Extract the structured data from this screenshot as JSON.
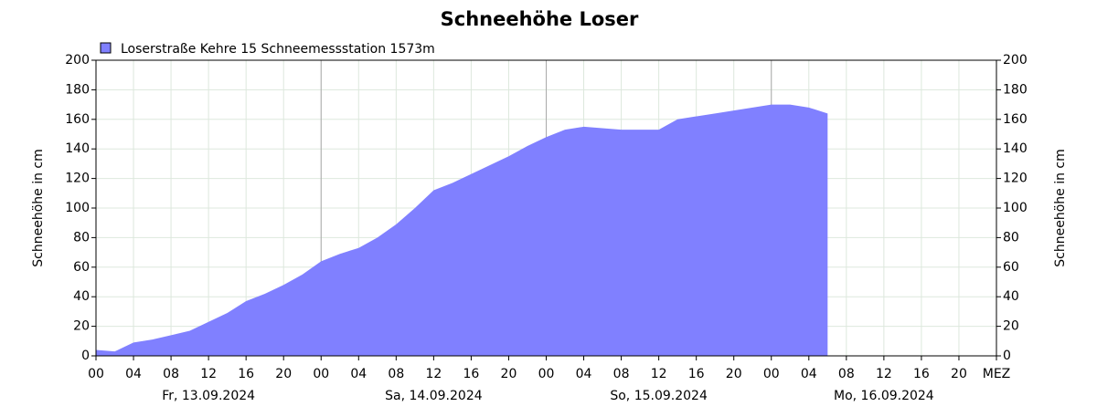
{
  "chart_data": {
    "type": "area",
    "title": "Schneehöhe    Loser",
    "ylabel": "Schneehöhe in cm",
    "y2label": "Schneehöhe in cm",
    "series": [
      {
        "name": "Loserstraße Kehre 15 Schneemessstation   1573m",
        "color": "#8080ff",
        "x": [
          0,
          2,
          4,
          6,
          8,
          10,
          12,
          14,
          16,
          18,
          20,
          22,
          24,
          26,
          28,
          30,
          32,
          34,
          36,
          38,
          40,
          42,
          44,
          46,
          48,
          50,
          52,
          54,
          56,
          58,
          60,
          62,
          64,
          66,
          68,
          70,
          72,
          74,
          76,
          78
        ],
        "values": [
          4,
          3,
          9,
          11,
          14,
          17,
          23,
          29,
          37,
          42,
          48,
          55,
          64,
          69,
          73,
          80,
          89,
          100,
          112,
          117,
          123,
          129,
          135,
          142,
          148,
          153,
          155,
          154,
          153,
          153,
          153,
          160,
          162,
          164,
          166,
          168,
          170,
          170,
          168,
          164
        ]
      }
    ],
    "xlim": [
      0,
      96
    ],
    "xticks": [
      {
        "value": 0,
        "label": "00"
      },
      {
        "value": 4,
        "label": "04"
      },
      {
        "value": 8,
        "label": "08"
      },
      12,
      16,
      20,
      {
        "value": 24,
        "label": "00"
      },
      {
        "value": 28,
        "label": "04"
      },
      {
        "value": 32,
        "label": "08"
      },
      {
        "value": 36,
        "label": "12"
      },
      {
        "value": 40,
        "label": "16"
      },
      {
        "value": 44,
        "label": "20"
      },
      {
        "value": 48,
        "label": "00"
      },
      {
        "value": 52,
        "label": "04"
      },
      {
        "value": 56,
        "label": "08"
      },
      {
        "value": 60,
        "label": "12"
      },
      {
        "value": 64,
        "label": "16"
      },
      {
        "value": 68,
        "label": "20"
      },
      {
        "value": 72,
        "label": "00"
      },
      {
        "value": 76,
        "label": "04"
      },
      {
        "value": 80,
        "label": "08"
      },
      {
        "value": 84,
        "label": "12"
      },
      {
        "value": 88,
        "label": "16"
      },
      {
        "value": 92,
        "label": "20"
      },
      {
        "value": 96,
        "label": "MEZ"
      }
    ],
    "day_labels": [
      {
        "value": 12,
        "label": "Fr, 13.09.2024"
      },
      {
        "value": 36,
        "label": "Sa, 14.09.2024"
      },
      {
        "value": 60,
        "label": "So, 15.09.2024"
      },
      {
        "value": 84,
        "label": "Mo, 16.09.2024"
      }
    ],
    "day_separators": [
      24,
      48,
      72
    ],
    "ylim": [
      0,
      200
    ],
    "yticks": [
      0,
      20,
      40,
      60,
      80,
      100,
      120,
      140,
      160,
      180,
      200
    ],
    "y2lim": [
      0,
      200
    ],
    "y2ticks": [
      0,
      20,
      40,
      60,
      80,
      100,
      120,
      140,
      160,
      180,
      200
    ],
    "grid": true
  }
}
